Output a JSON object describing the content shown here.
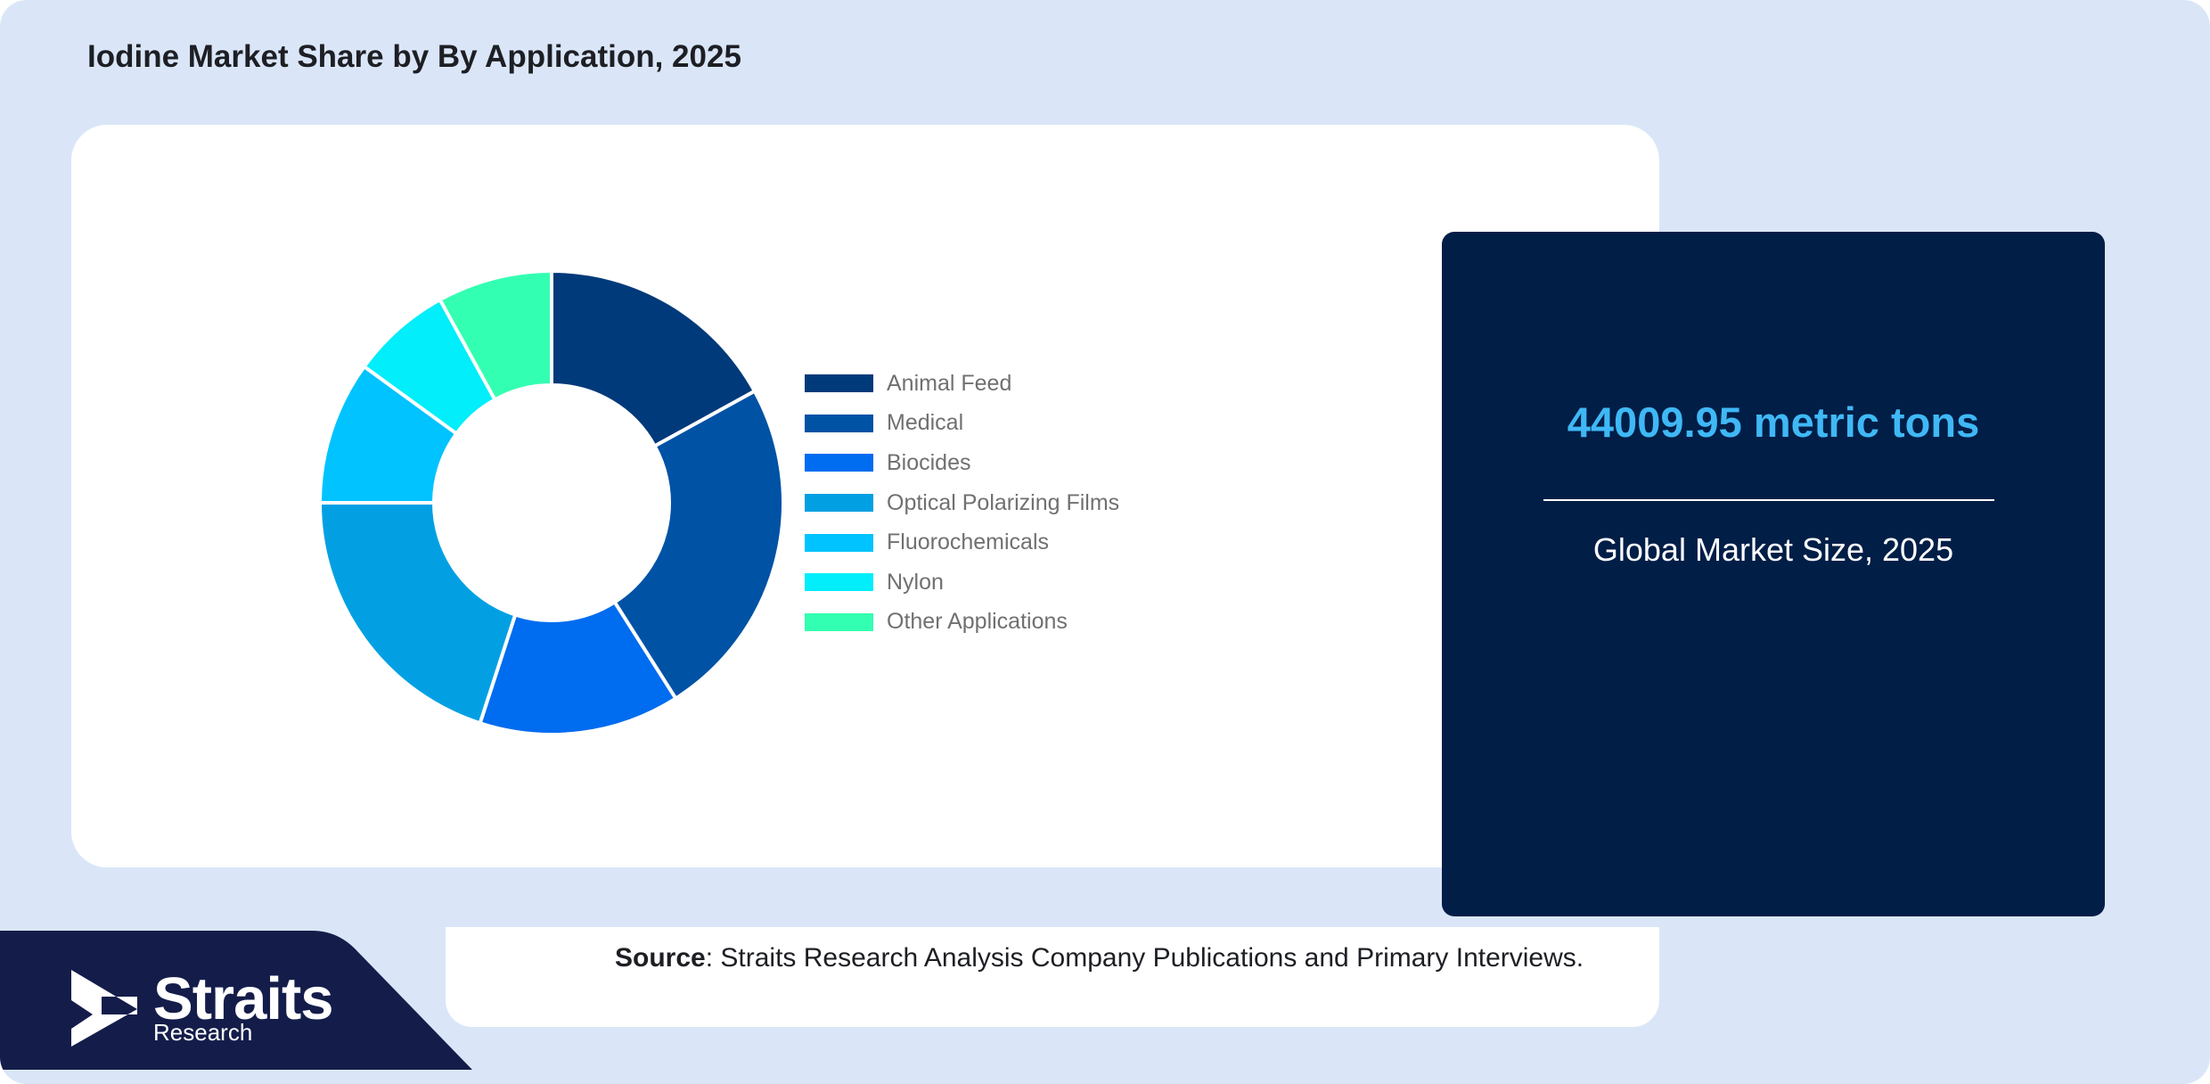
{
  "title": "Iodine Market Share by By Application, 2025",
  "chart_data": {
    "type": "pie",
    "donut": true,
    "legend": "right",
    "categories": [
      "Animal Feed",
      "Medical",
      "Biocides",
      "Optical Polarizing Films",
      "Fluorochemicals",
      "Nylon",
      "Other Applications"
    ],
    "values": [
      17,
      24,
      14,
      20,
      10,
      7,
      8
    ],
    "colors": [
      "#003a7a",
      "#0052a5",
      "#006cef",
      "#02a0e3",
      "#00c3ff",
      "#01eefa",
      "#33ffb2"
    ]
  },
  "stat": {
    "value": "44009.95 metric tons",
    "caption": "Global Market Size, 2025",
    "value_color": "#3fb8f5"
  },
  "source": {
    "label": "Source",
    "text": ": Straits Research Analysis Company Publications and Primary Interviews."
  },
  "logo": {
    "name": "Straits",
    "sub": "Research"
  }
}
